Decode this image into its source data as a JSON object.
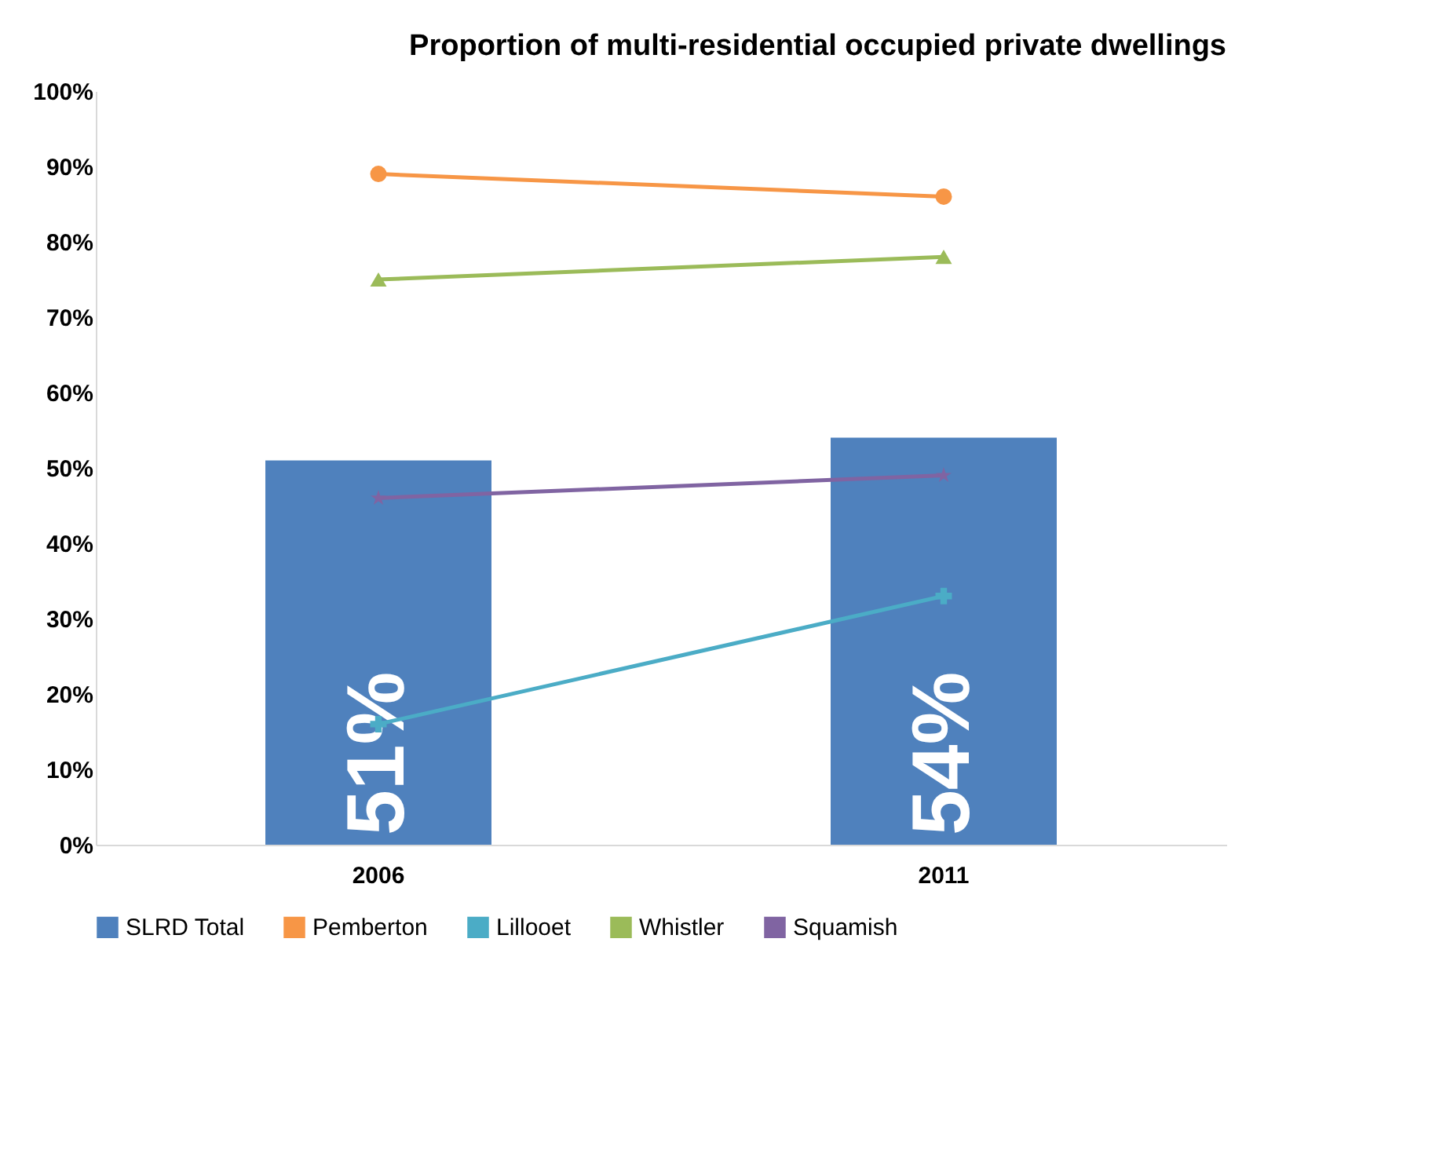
{
  "chart_data": {
    "type": "bar",
    "title": "Proportion of multi-residential occupied private dwellings",
    "categories": [
      "2006",
      "2011"
    ],
    "series": [
      {
        "name": "SLRD Total",
        "color": "#4f81bd",
        "values": [
          51,
          54
        ],
        "value_labels": [
          "51%",
          "54%"
        ]
      },
      {
        "name": "Pemberton",
        "type": "line",
        "color": "#f79646",
        "marker": "circle",
        "values": [
          89,
          86
        ]
      },
      {
        "name": "Lillooet",
        "type": "line",
        "color": "#4bacc6",
        "marker": "cross",
        "values": [
          16,
          33
        ]
      },
      {
        "name": "Whistler",
        "type": "line",
        "color": "#9bbb59",
        "marker": "triangle",
        "values": [
          75,
          78
        ]
      },
      {
        "name": "Squamish",
        "type": "line",
        "color": "#8064a2",
        "marker": "star",
        "values": [
          46,
          49
        ]
      }
    ],
    "ylim": [
      0,
      100
    ],
    "yticks": [
      {
        "value": 0,
        "label": "0%"
      },
      {
        "value": 10,
        "label": "10%"
      },
      {
        "value": 20,
        "label": "20%"
      },
      {
        "value": 30,
        "label": "30%"
      },
      {
        "value": 40,
        "label": "40%"
      },
      {
        "value": 50,
        "label": "50%"
      },
      {
        "value": 60,
        "label": "60%"
      },
      {
        "value": 70,
        "label": "70%"
      },
      {
        "value": 80,
        "label": "80%"
      },
      {
        "value": 90,
        "label": "90%"
      },
      {
        "value": 100,
        "label": "100%"
      }
    ],
    "grid": false,
    "legend": "bottom"
  }
}
